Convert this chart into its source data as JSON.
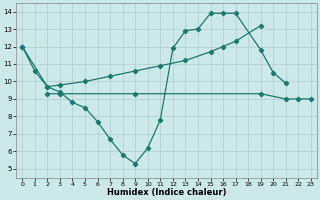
{
  "xlabel": "Humidex (Indice chaleur)",
  "bg_color": "#cde8e8",
  "line_color": "#1a7a6e",
  "grid_color": "#b0cccc",
  "xlim": [
    -0.5,
    23.5
  ],
  "ylim": [
    4.5,
    14.5
  ],
  "xticks": [
    0,
    1,
    2,
    3,
    4,
    5,
    6,
    7,
    8,
    9,
    10,
    11,
    12,
    13,
    14,
    15,
    16,
    17,
    18,
    19,
    20,
    21,
    22,
    23
  ],
  "yticks": [
    5,
    6,
    7,
    8,
    9,
    10,
    11,
    12,
    13,
    14
  ],
  "line1_x": [
    0,
    1,
    2,
    3,
    4,
    5,
    6,
    7,
    8,
    9,
    10,
    11,
    12,
    13,
    14,
    15,
    16,
    17,
    19,
    20,
    21
  ],
  "line1_y": [
    12,
    10.6,
    9.7,
    9.4,
    8.8,
    8.5,
    7.7,
    6.7,
    5.8,
    5.3,
    6.2,
    7.8,
    11.9,
    12.9,
    13.0,
    13.9,
    13.9,
    13.9,
    11.8,
    10.5,
    9.9
  ],
  "line2_x": [
    0,
    2,
    3,
    5,
    7,
    9,
    11,
    13,
    15,
    16,
    17,
    19
  ],
  "line2_y": [
    12.0,
    9.7,
    9.8,
    10.0,
    10.3,
    10.6,
    10.9,
    11.2,
    11.7,
    12.0,
    12.3,
    13.2
  ],
  "line3_x": [
    2,
    3,
    9,
    19,
    21,
    22,
    23
  ],
  "line3_y": [
    9.3,
    9.3,
    9.3,
    9.3,
    9.0,
    9.0,
    9.0
  ]
}
